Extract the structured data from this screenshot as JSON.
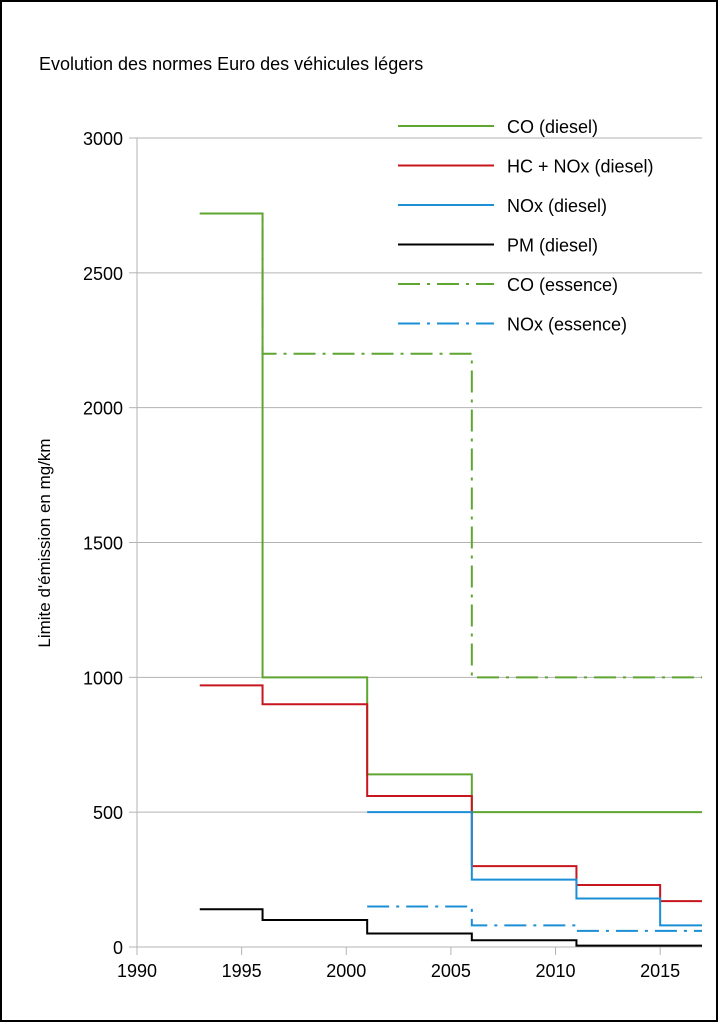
{
  "chart_data": {
    "type": "line",
    "title": "Evolution des normes Euro des véhicules légers",
    "xlabel": "",
    "ylabel": "Limite d'émission en mg/km",
    "xlim": [
      1990,
      2017
    ],
    "ylim": [
      0,
      3000
    ],
    "x_ticks": [
      "1990",
      "1995",
      "2000",
      "2005",
      "2010",
      "2015"
    ],
    "y_ticks": [
      "0",
      "500",
      "1000",
      "1500",
      "2000",
      "2500",
      "3000"
    ],
    "grid": "horizontal",
    "legend_position": "top-right",
    "step": "post",
    "series": [
      {
        "name": "CO (diesel)",
        "color": "#5ea531",
        "dash": "solid",
        "x": [
          1993,
          1996,
          2001,
          2006,
          2011,
          2015,
          2017
        ],
        "y": [
          2720,
          1000,
          640,
          500,
          500,
          500,
          500
        ]
      },
      {
        "name": "HC + NOx (diesel)",
        "color": "#c7161e",
        "dash": "solid",
        "x": [
          1993,
          1996,
          2001,
          2006,
          2011,
          2015,
          2017
        ],
        "y": [
          970,
          900,
          560,
          300,
          230,
          170,
          170
        ]
      },
      {
        "name": "NOx (diesel)",
        "color": "#1b8fd6",
        "dash": "solid",
        "x": [
          2001,
          2006,
          2011,
          2015,
          2017
        ],
        "y": [
          500,
          250,
          180,
          80,
          80
        ]
      },
      {
        "name": "PM (diesel)",
        "color": "#000000",
        "dash": "solid",
        "x": [
          1993,
          1996,
          2001,
          2006,
          2011,
          2015,
          2017
        ],
        "y": [
          140,
          100,
          50,
          25,
          5,
          5,
          5
        ]
      },
      {
        "name": "CO (essence)",
        "color": "#5ea531",
        "dash": "dashdot",
        "x": [
          1993,
          1996,
          2001,
          2006,
          2011,
          2015,
          2017
        ],
        "y": [
          2720,
          2200,
          2200,
          1000,
          1000,
          1000,
          1000
        ]
      },
      {
        "name": "NOx (essence)",
        "color": "#1b8fd6",
        "dash": "dashdot",
        "x": [
          2001,
          2006,
          2011,
          2015,
          2017
        ],
        "y": [
          150,
          80,
          60,
          60,
          60
        ]
      }
    ]
  }
}
